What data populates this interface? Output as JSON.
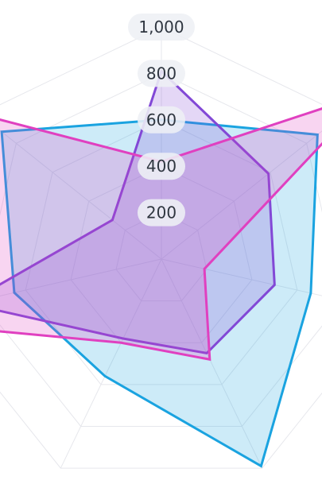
{
  "chart_data": {
    "type": "radar",
    "title": "",
    "axis_count": 7,
    "rmin": 0,
    "rmax": 1000,
    "grid": true,
    "legend": "none",
    "rings": [
      200,
      400,
      600,
      800,
      1000
    ],
    "tick_labels": [
      "200",
      "400",
      "600",
      "800",
      "1,000"
    ],
    "series": [
      {
        "values": [
          600,
          860,
          660,
          990,
          560,
          650,
          880
        ],
        "stroke": "#1aa3e0",
        "fill": "#1aa3e0",
        "fill_opacity": 0.22
      },
      {
        "values": [
          810,
          590,
          500,
          450,
          380,
          860,
          270
        ],
        "stroke": "#8248d6",
        "fill": "#8248d6",
        "fill_opacity": 0.22
      },
      {
        "values": [
          420,
          1150,
          190,
          480,
          400,
          1200,
          1000
        ],
        "stroke": "#e040c0",
        "fill": "#e040c0",
        "fill_opacity": 0.22
      }
    ]
  }
}
